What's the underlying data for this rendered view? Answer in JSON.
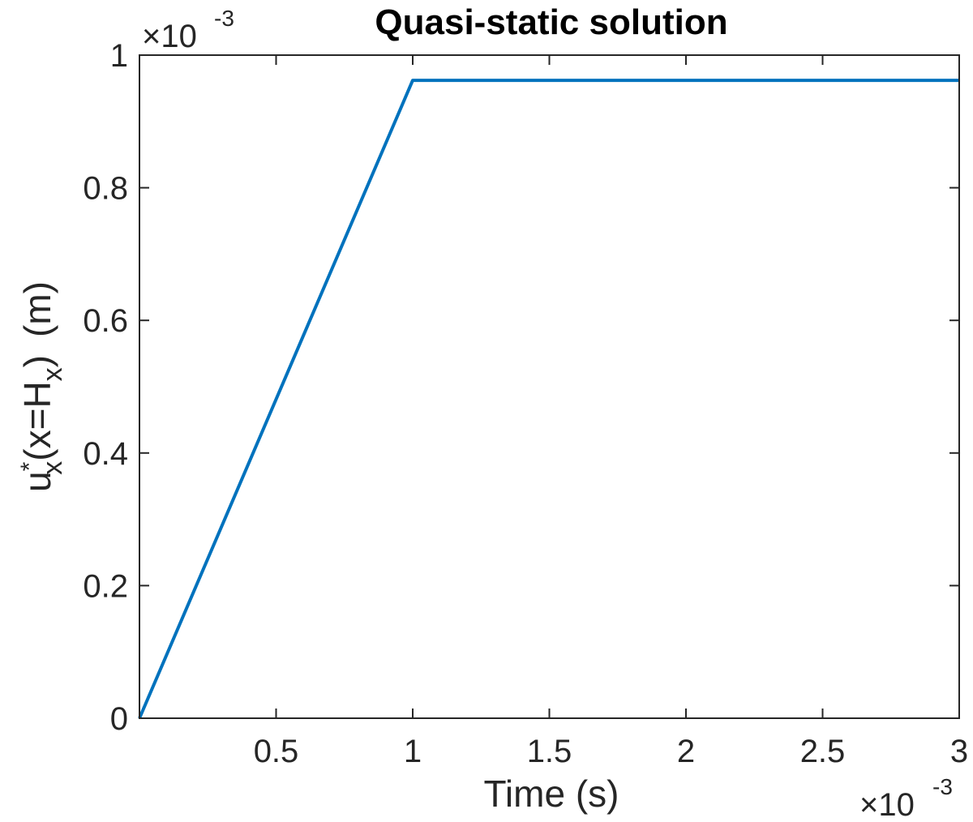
{
  "chart_data": {
    "type": "line",
    "title": "Quasi-static solution",
    "xlabel": "Time (s)",
    "ylabel": {
      "base": "u",
      "superscript": "*",
      "subscript": "x",
      "inner": "(x=H",
      "inner_subscript": "x",
      "inner_close": ")",
      "unit": "(m)"
    },
    "x_exponent": {
      "prefix": "×10",
      "power": "-3"
    },
    "y_exponent": {
      "prefix": "×10",
      "power": "-3"
    },
    "xlim": [
      0,
      3
    ],
    "ylim": [
      0,
      1
    ],
    "x_ticks": [
      0.5,
      1,
      1.5,
      2,
      2.5,
      3
    ],
    "x_tick_labels": [
      "0.5",
      "1",
      "1.5",
      "2",
      "2.5",
      "3"
    ],
    "y_ticks": [
      0,
      0.2,
      0.4,
      0.6,
      0.8,
      1
    ],
    "y_tick_labels": [
      "0",
      "0.2",
      "0.4",
      "0.6",
      "0.8",
      "1"
    ],
    "grid": false,
    "series": [
      {
        "color": "#0072BD",
        "x": [
          0,
          1,
          3
        ],
        "y": [
          0,
          0.962,
          0.962
        ]
      }
    ]
  }
}
